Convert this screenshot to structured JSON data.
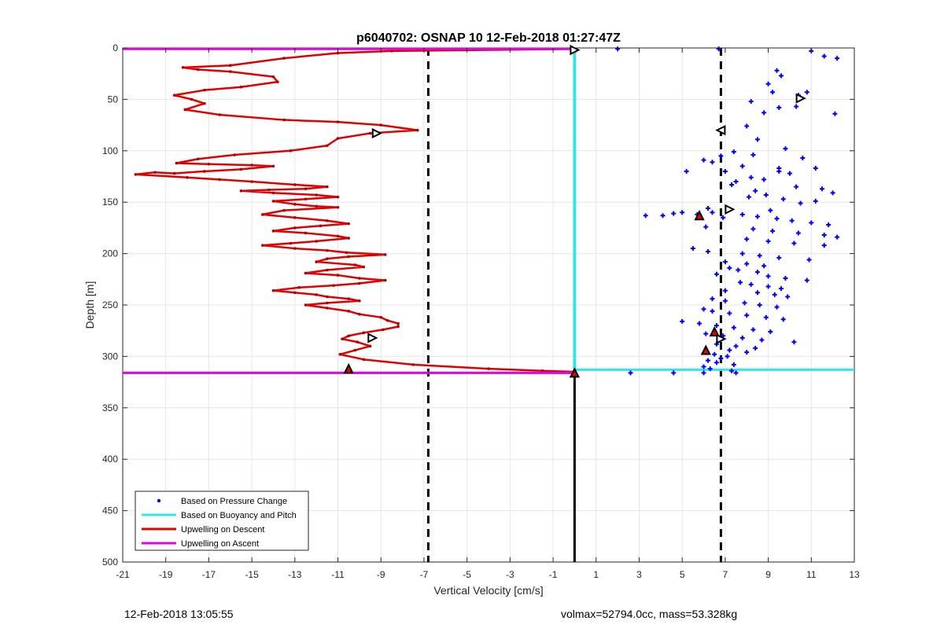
{
  "chart_data": {
    "type": "scatter",
    "title": "p6040702: OSNAP 10 12-Feb-2018 01:27:47Z",
    "xlabel": "Vertical Velocity [cm/s]",
    "ylabel": "Depth [m]",
    "xlim": [
      -21,
      13
    ],
    "ylim": [
      0,
      500
    ],
    "y_reversed": true,
    "grid": true,
    "xticks": [
      -21,
      -19,
      -17,
      -15,
      -13,
      -11,
      -9,
      -7,
      -5,
      -3,
      -1,
      1,
      3,
      5,
      7,
      9,
      11,
      13
    ],
    "yticks": [
      0,
      50,
      100,
      150,
      200,
      250,
      300,
      350,
      400,
      450,
      500
    ],
    "legend_location": "bottom-left",
    "legend": [
      {
        "label": "Based on Pressure Change",
        "color": "#0000ff",
        "style": "dot"
      },
      {
        "label": "Based on Buoyancy and Pitch",
        "color": "#33e6ee",
        "style": "line"
      },
      {
        "label": "Upwelling on Descent",
        "color": "#e00000",
        "style": "line"
      },
      {
        "label": "Upwelling on Ascent",
        "color": "#e600e6",
        "style": "line"
      }
    ],
    "reference_lines": {
      "dashed_x": [
        -6.8,
        6.8
      ],
      "solid_zero_x": 0,
      "solid_zero_from_depth": 316,
      "ascent_depths": [
        1,
        316
      ],
      "ascent_x_range": [
        -21,
        0
      ],
      "buoyancy_horizontal": {
        "y": 313,
        "x": [
          0,
          13
        ]
      }
    },
    "series": [
      {
        "name": "Upwelling on Descent",
        "color": "#e00000",
        "mode": "line",
        "x": [
          0.0,
          -8.5,
          -11.0,
          -13.5,
          -16.0,
          -18.2,
          -17.5,
          -16.0,
          -14.0,
          -13.8,
          -15.5,
          -17.2,
          -18.6,
          -17.8,
          -17.2,
          -18.1,
          -16.5,
          -13.5,
          -11.0,
          -9.0,
          -7.3,
          -9.5,
          -11.0,
          -11.5,
          -13.2,
          -15.8,
          -17.5,
          -18.5,
          -17.0,
          -15.0,
          -14.0,
          -15.5,
          -17.2,
          -18.6,
          -19.5,
          -20.4,
          -18.0,
          -16.5,
          -15.0,
          -13.0,
          -11.5,
          -12.5,
          -14.2,
          -15.5,
          -14.0,
          -12.0,
          -11.0,
          -12.5,
          -14.0,
          -13.0,
          -12.0,
          -11.0,
          -13.5,
          -14.5,
          -13.0,
          -11.5,
          -10.5,
          -11.8,
          -13.0,
          -14.0,
          -12.5,
          -11.0,
          -10.5,
          -12.0,
          -13.2,
          -14.5,
          -13.0,
          -11.5,
          -10.6,
          -8.8,
          -10.5,
          -11.5,
          -12.0,
          -10.2,
          -9.8,
          -11.5,
          -12.5,
          -11.0,
          -10.0,
          -8.8,
          -10.0,
          -11.2,
          -12.8,
          -14.0,
          -13.0,
          -12.0,
          -11.5,
          -10.5,
          -10.0,
          -11.5,
          -12.5,
          -11.5,
          -10.5,
          -10.0,
          -9.0,
          -8.7,
          -8.2,
          -8.2,
          -8.9,
          -9.8,
          -10.5,
          -10.8,
          -10.1,
          -9.5,
          -10.2,
          -10.9,
          -9.8,
          -7.5,
          -4.0,
          -1.5,
          0.0
        ],
        "y": [
          1,
          3,
          5,
          10,
          17,
          19,
          21,
          23,
          28,
          33,
          38,
          41,
          46,
          50,
          54,
          60,
          65,
          70,
          72,
          75,
          80,
          83,
          88,
          95,
          100,
          104,
          108,
          112,
          113,
          114,
          115,
          118,
          120,
          122,
          121,
          123,
          126,
          128,
          130,
          133,
          135,
          137,
          138,
          139,
          141,
          143,
          145,
          147,
          149,
          152,
          154,
          155,
          158,
          162,
          165,
          168,
          171,
          173,
          175,
          178,
          180,
          183,
          185,
          188,
          190,
          192,
          195,
          197,
          199,
          201,
          203,
          205,
          208,
          211,
          213,
          216,
          219,
          221,
          224,
          226,
          229,
          231,
          233,
          236,
          238,
          240,
          242,
          244,
          246,
          248,
          250,
          253,
          256,
          259,
          262,
          265,
          268,
          271,
          274,
          277,
          280,
          283,
          286,
          290,
          294,
          298,
          303,
          308,
          312,
          314,
          315
        ]
      },
      {
        "name": "Based on Buoyancy and Pitch",
        "color": "#33e6ee",
        "mode": "line",
        "x": [
          0.0,
          0.0
        ],
        "y": [
          1,
          313
        ]
      },
      {
        "name": "Based on Pressure Change",
        "color": "#0000ff",
        "mode": "points",
        "x": [
          11.0,
          11.6,
          12.2,
          9.4,
          9.6,
          9.0,
          9.2,
          10.5,
          8.2,
          9.5,
          8.8,
          10.4,
          10.3,
          8.0,
          10.8,
          12.1,
          8.5,
          9.8,
          7.4,
          6.8,
          10.6,
          6.0,
          6.4,
          8.3,
          7.8,
          11.2,
          9.5,
          10.0,
          7.0,
          8.2,
          8.8,
          7.5,
          7.3,
          10.3,
          11.5,
          8.4,
          12.0,
          9.5,
          5.2,
          8.1,
          8.9,
          9.7,
          10.5,
          11.2,
          6.2,
          9.1,
          6.4,
          7.8,
          8.5,
          9.4,
          10.1,
          11.0,
          11.8,
          6.1,
          8.3,
          9.2,
          10.4,
          11.6,
          12.2,
          3.3,
          4.1,
          4.6,
          5.0,
          5.7,
          6.9,
          8.0,
          9.0,
          10.2,
          11.6,
          5.5,
          6.2,
          7.8,
          8.6,
          9.5,
          10.9,
          7.0,
          8.0,
          8.8,
          7.2,
          7.6,
          8.5,
          6.6,
          9.0,
          9.8,
          10.8,
          7.7,
          8.2,
          9.0,
          9.6,
          7.0,
          8.5,
          9.3,
          9.9,
          6.4,
          7.0,
          7.9,
          8.6,
          9.4,
          6.0,
          6.4,
          7.2,
          8.0,
          8.9,
          9.7,
          5.0,
          5.8,
          6.6,
          7.4,
          8.3,
          9.1,
          6.1,
          6.9,
          7.8,
          8.7,
          10.2,
          6.6,
          7.5,
          8.4,
          7.2,
          8.0,
          6.5,
          7.1,
          6.8,
          6.2,
          6.6,
          7.4,
          6.0,
          6.3,
          7.3,
          2.0,
          6.7,
          2.6,
          4.6,
          6.0,
          7.5
        ],
        "y": [
          3,
          8,
          10,
          22,
          27,
          35,
          43,
          49,
          52,
          58,
          63,
          46,
          57,
          76,
          43,
          64,
          89,
          98,
          101,
          105,
          107,
          109,
          111,
          104,
          115,
          117,
          120,
          122,
          120,
          126,
          128,
          130,
          133,
          135,
          137,
          139,
          141,
          117,
          120,
          145,
          143,
          147,
          151,
          149,
          156,
          158,
          160,
          162,
          164,
          166,
          168,
          170,
          172,
          174,
          176,
          178,
          180,
          182,
          184,
          163,
          163,
          161,
          160,
          162,
          165,
          186,
          188,
          190,
          192,
          195,
          198,
          200,
          202,
          204,
          206,
          208,
          210,
          212,
          214,
          216,
          218,
          220,
          222,
          224,
          226,
          228,
          230,
          232,
          234,
          236,
          238,
          240,
          242,
          244,
          246,
          248,
          250,
          252,
          254,
          256,
          258,
          260,
          262,
          264,
          266,
          268,
          270,
          272,
          274,
          276,
          278,
          280,
          282,
          284,
          286,
          288,
          290,
          292,
          294,
          296,
          298,
          300,
          302,
          304,
          306,
          308,
          310,
          312,
          314,
          1,
          1,
          316,
          316,
          316,
          316
        ]
      },
      {
        "name": "Upwelling on Ascent",
        "color": "#e600e6",
        "mode": "line",
        "x": [
          -21,
          0
        ],
        "y": [
          1,
          1
        ]
      }
    ],
    "markers": [
      {
        "type": "triangle-right",
        "fill": "#ffffff",
        "x": 0.0,
        "y": 2
      },
      {
        "type": "triangle-right",
        "fill": "#ffffff",
        "x": -9.2,
        "y": 83
      },
      {
        "type": "triangle-right",
        "fill": "#ffffff",
        "x": -9.4,
        "y": 282
      },
      {
        "type": "triangle-right",
        "fill": "#ffffff",
        "x": 10.5,
        "y": 49
      },
      {
        "type": "triangle-left",
        "fill": "#ffffff",
        "x": 6.8,
        "y": 80
      },
      {
        "type": "triangle-right",
        "fill": "#ffffff",
        "x": 7.2,
        "y": 157
      },
      {
        "type": "triangle-right",
        "fill": "#ffffff",
        "x": 6.8,
        "y": 283
      },
      {
        "type": "triangle-up",
        "fill": "#e00000",
        "x": 5.8,
        "y": 163
      },
      {
        "type": "triangle-up",
        "fill": "#e00000",
        "x": 6.5,
        "y": 276
      },
      {
        "type": "triangle-up",
        "fill": "#e00000",
        "x": 6.1,
        "y": 294
      },
      {
        "type": "triangle-up",
        "fill": "#e00000",
        "x": -10.5,
        "y": 312
      },
      {
        "type": "triangle-up",
        "fill": "#e00000",
        "x": 0.0,
        "y": 316
      }
    ]
  },
  "footer": {
    "left": "12-Feb-2018 13:05:55",
    "right": "volmax=52794.0cc, mass=53.328kg"
  }
}
